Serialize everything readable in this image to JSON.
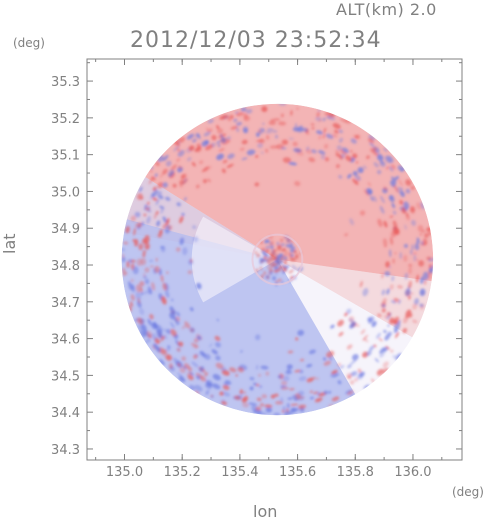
{
  "header": {
    "altitude_label": "ALT(km) 2.0",
    "timestamp": "2012/12/03 23:52:34"
  },
  "chart_data": {
    "type": "heatmap",
    "title": "",
    "xlabel": "lon",
    "ylabel": "lat",
    "x_unit": "(deg)",
    "y_unit": "(deg)",
    "xlim": [
      134.87,
      136.17
    ],
    "ylim": [
      34.27,
      35.36
    ],
    "x_ticks": [
      "135.0",
      "135.2",
      "135.4",
      "135.6",
      "135.8",
      "136.0"
    ],
    "y_ticks": [
      "34.3",
      "34.4",
      "34.5",
      "34.6",
      "34.7",
      "34.8",
      "34.9",
      "35.0",
      "35.1",
      "35.2",
      "35.3"
    ],
    "radar_center": {
      "lon": 135.53,
      "lat": 34.815
    },
    "radar_radius_deg": 0.54,
    "colors": {
      "positive": "#f2a8a8",
      "negative": "#b4bcee",
      "neutral": "#f6f4fb",
      "axis": "#808080"
    }
  }
}
